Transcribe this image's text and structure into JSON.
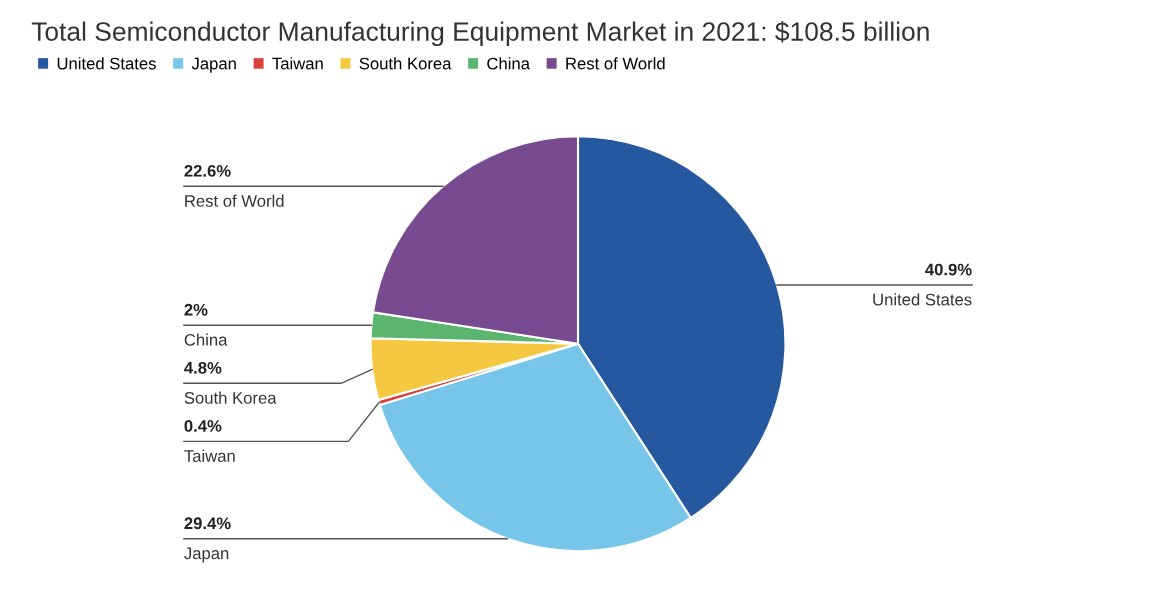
{
  "chart_data": {
    "type": "pie",
    "title": "Total Semiconductor Manufacturing Equipment Market in 2021: $108.5 billion",
    "categories": [
      "United States",
      "Japan",
      "Taiwan",
      "South Korea",
      "China",
      "Rest of World"
    ],
    "values": [
      40.9,
      29.4,
      0.4,
      4.8,
      2,
      22.6
    ],
    "colors": [
      "#25589e",
      "#78c5ea",
      "#d9413a",
      "#f5c842",
      "#5bb56e",
      "#784b91"
    ],
    "value_labels": [
      "40.9%",
      "29.4%",
      "0.4%",
      "4.8%",
      "2%",
      "22.6%"
    ],
    "legend": "top"
  }
}
